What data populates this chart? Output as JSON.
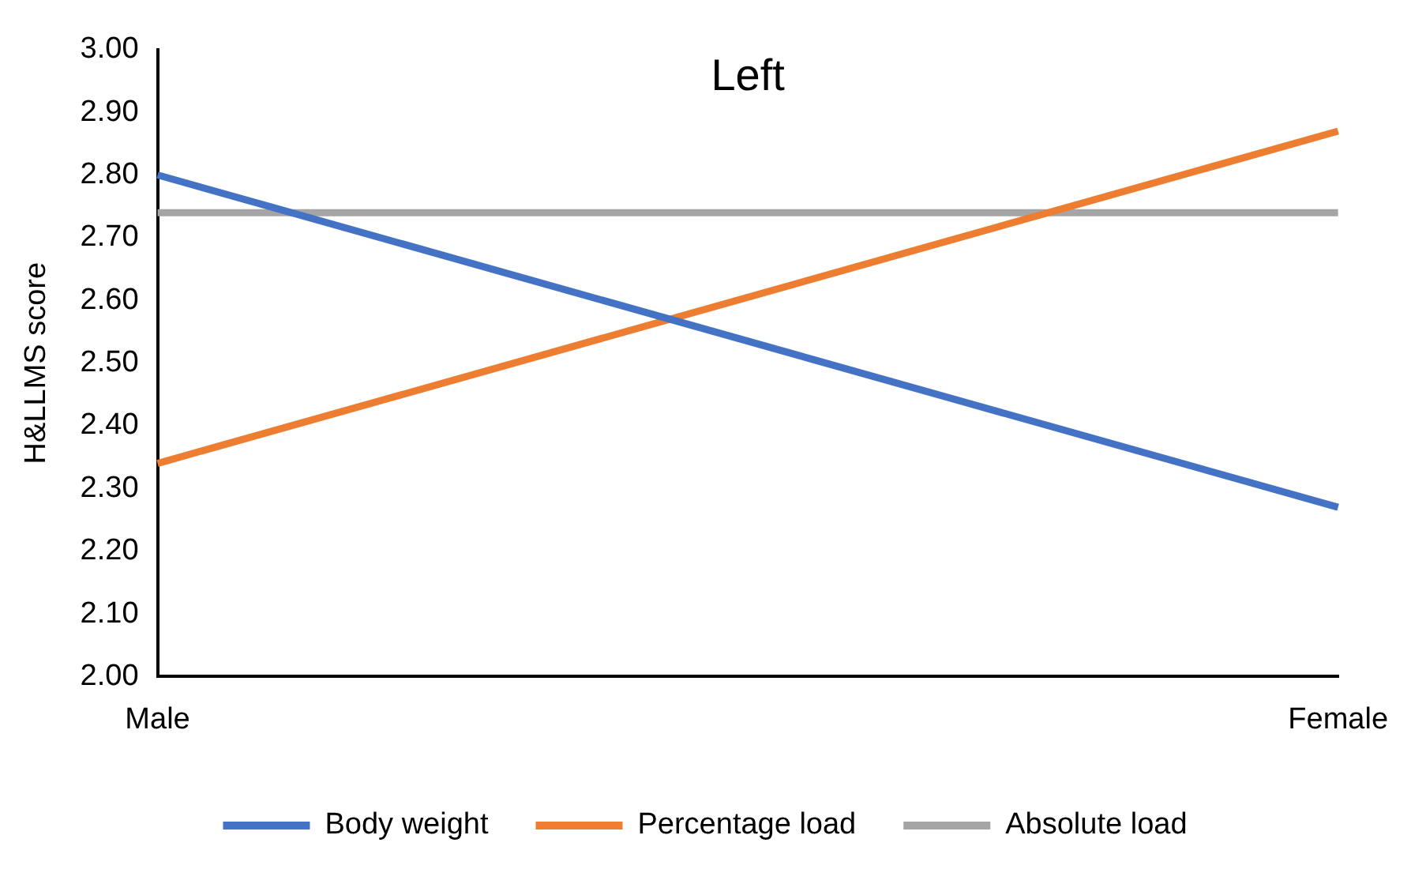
{
  "chart_data": {
    "type": "line",
    "title": "Left",
    "ylabel": "H&LLMS score",
    "categories": [
      "Male",
      "Female"
    ],
    "series": [
      {
        "name": "Body weight",
        "color": "#4472c4",
        "values": [
          2.8,
          2.27
        ]
      },
      {
        "name": "Percentage load",
        "color": "#ed7d31",
        "values": [
          2.34,
          2.87
        ]
      },
      {
        "name": "Absolute load",
        "color": "#a5a5a5",
        "values": [
          2.74,
          2.74
        ]
      }
    ],
    "ylim": [
      2,
      3
    ],
    "yticks": [
      {
        "value": 2,
        "label": "2.00"
      },
      {
        "value": 2.1,
        "label": "2.10"
      },
      {
        "value": 2.2,
        "label": "2.20"
      },
      {
        "value": 2.3,
        "label": "2.30"
      },
      {
        "value": 2.4,
        "label": "2.40"
      },
      {
        "value": 2.5,
        "label": "2.50"
      },
      {
        "value": 2.6,
        "label": "2.60"
      },
      {
        "value": 2.7,
        "label": "2.70"
      },
      {
        "value": 2.8,
        "label": "2.80"
      },
      {
        "value": 2.9,
        "label": "2.90"
      },
      {
        "value": 3,
        "label": "3.00"
      }
    ],
    "grid": false,
    "legend": "bottom",
    "marker": "none",
    "line_style": "solid"
  }
}
